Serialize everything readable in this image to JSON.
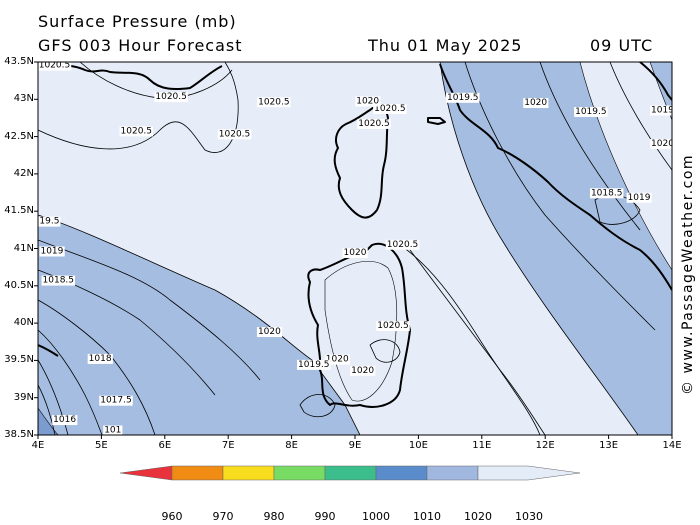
{
  "header": {
    "title": "Surface Pressure (mb)",
    "subtitle": "GFS 003 Hour Forecast",
    "valid_date": "Thu 01 May 2025",
    "valid_time": "09 UTC"
  },
  "map": {
    "lat_labels": [
      "43.5N",
      "43N",
      "42.5N",
      "42N",
      "41.5N",
      "41N",
      "40.5N",
      "40N",
      "39.5N",
      "39N",
      "38.5N"
    ],
    "lon_labels": [
      "4E",
      "5E",
      "6E",
      "7E",
      "8E",
      "9E",
      "10E",
      "11E",
      "12E",
      "13E",
      "14E"
    ],
    "fill_colors": {
      "above_1020": "#e6ecf8",
      "1015_1020": "#a5bde0",
      "below_1015": "#7c9cd0"
    }
  },
  "contour_labels": [
    {
      "text": "1020.5",
      "lon": 4.26,
      "lat": 43.45
    },
    {
      "text": "1020.5",
      "lon": 6.1,
      "lat": 43.03
    },
    {
      "text": "1020.5",
      "lon": 7.72,
      "lat": 42.96
    },
    {
      "text": "1020.5",
      "lon": 5.55,
      "lat": 42.57
    },
    {
      "text": "1020.5",
      "lon": 7.1,
      "lat": 42.53
    },
    {
      "text": "1020.5",
      "lon": 9.3,
      "lat": 42.67
    },
    {
      "text": "1020.5",
      "lon": 9.55,
      "lat": 42.87
    },
    {
      "text": "1020",
      "lon": 9.2,
      "lat": 42.97
    },
    {
      "text": "1019.5",
      "lon": 10.7,
      "lat": 43.02
    },
    {
      "text": "1020",
      "lon": 11.85,
      "lat": 42.95
    },
    {
      "text": "1019.5",
      "lon": 12.72,
      "lat": 42.83
    },
    {
      "text": "1019",
      "lon": 13.85,
      "lat": 42.85
    },
    {
      "text": "1020",
      "lon": 13.85,
      "lat": 42.4
    },
    {
      "text": "1018.5",
      "lon": 12.97,
      "lat": 41.74
    },
    {
      "text": "1019",
      "lon": 13.48,
      "lat": 41.68
    },
    {
      "text": "1020",
      "lon": 9.0,
      "lat": 40.94
    },
    {
      "text": "1020.5",
      "lon": 9.75,
      "lat": 41.05
    },
    {
      "text": "1020.5",
      "lon": 9.6,
      "lat": 39.96
    },
    {
      "text": "1020",
      "lon": 7.65,
      "lat": 39.88
    },
    {
      "text": "1020",
      "lon": 8.72,
      "lat": 39.51
    },
    {
      "text": "1020",
      "lon": 9.12,
      "lat": 39.36
    },
    {
      "text": "1019.5",
      "lon": 8.35,
      "lat": 39.44
    },
    {
      "text": "19.5",
      "lon": 4.18,
      "lat": 41.36
    },
    {
      "text": "1019",
      "lon": 4.22,
      "lat": 40.96
    },
    {
      "text": "1018.5",
      "lon": 4.32,
      "lat": 40.57
    },
    {
      "text": "1018",
      "lon": 4.98,
      "lat": 39.52
    },
    {
      "text": "1017.5",
      "lon": 5.23,
      "lat": 38.96
    },
    {
      "text": "1016",
      "lon": 4.42,
      "lat": 38.7
    },
    {
      "text": "101",
      "lon": 5.18,
      "lat": 38.56
    }
  ],
  "colorbar": {
    "labels": [
      "960",
      "970",
      "980",
      "990",
      "1000",
      "1010",
      "1020",
      "1030"
    ],
    "colors": [
      "#e8323c",
      "#f08c14",
      "#f8dc1e",
      "#78dc64",
      "#3cbe8c",
      "#5a8ccc",
      "#a0b8e0",
      "#e4ecf8"
    ]
  },
  "credit": "© www.PassageWeather.com"
}
